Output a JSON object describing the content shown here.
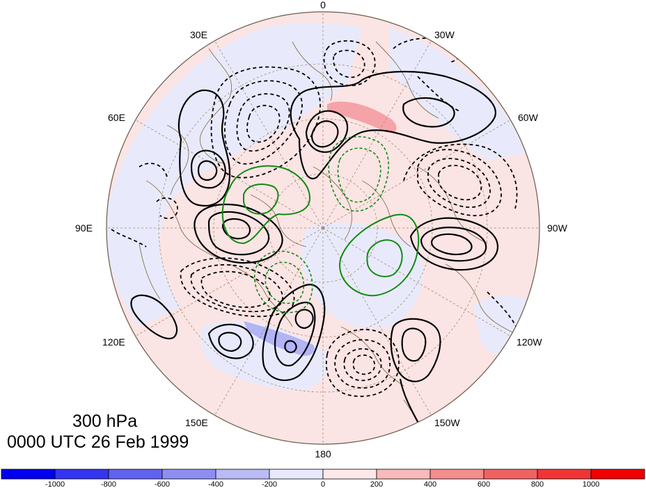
{
  "map": {
    "projection": "north-polar-stereographic",
    "longitude_labels": [
      "0",
      "30W",
      "60W",
      "90W",
      "120W",
      "150W",
      "180",
      "150E",
      "120E",
      "90E",
      "60E",
      "30E"
    ],
    "contours": {
      "black_solid": "positive",
      "black_dashed": "negative",
      "green_solid": "positive",
      "green_dashed": "negative"
    },
    "shading_colors": {
      "light_red": "#fbe4e4",
      "red": "#f5a3a8",
      "light_blue": "#e8eafc",
      "blue": "#b2b4f4"
    }
  },
  "caption": {
    "level": "300 hPa",
    "timestamp": "0000 UTC 26 Feb 1999"
  },
  "colorbar": {
    "colors": [
      "#0000f0",
      "#3535f0",
      "#6262f0",
      "#8e8ef2",
      "#babaf6",
      "#e8e8fc",
      "#fce8e8",
      "#f8baba",
      "#f48e8e",
      "#f06262",
      "#f03535",
      "#f00000"
    ],
    "tick_labels": [
      "-1000",
      "-800",
      "-600",
      "-400",
      "-200",
      "0",
      "200",
      "400",
      "600",
      "800",
      "1000"
    ]
  }
}
